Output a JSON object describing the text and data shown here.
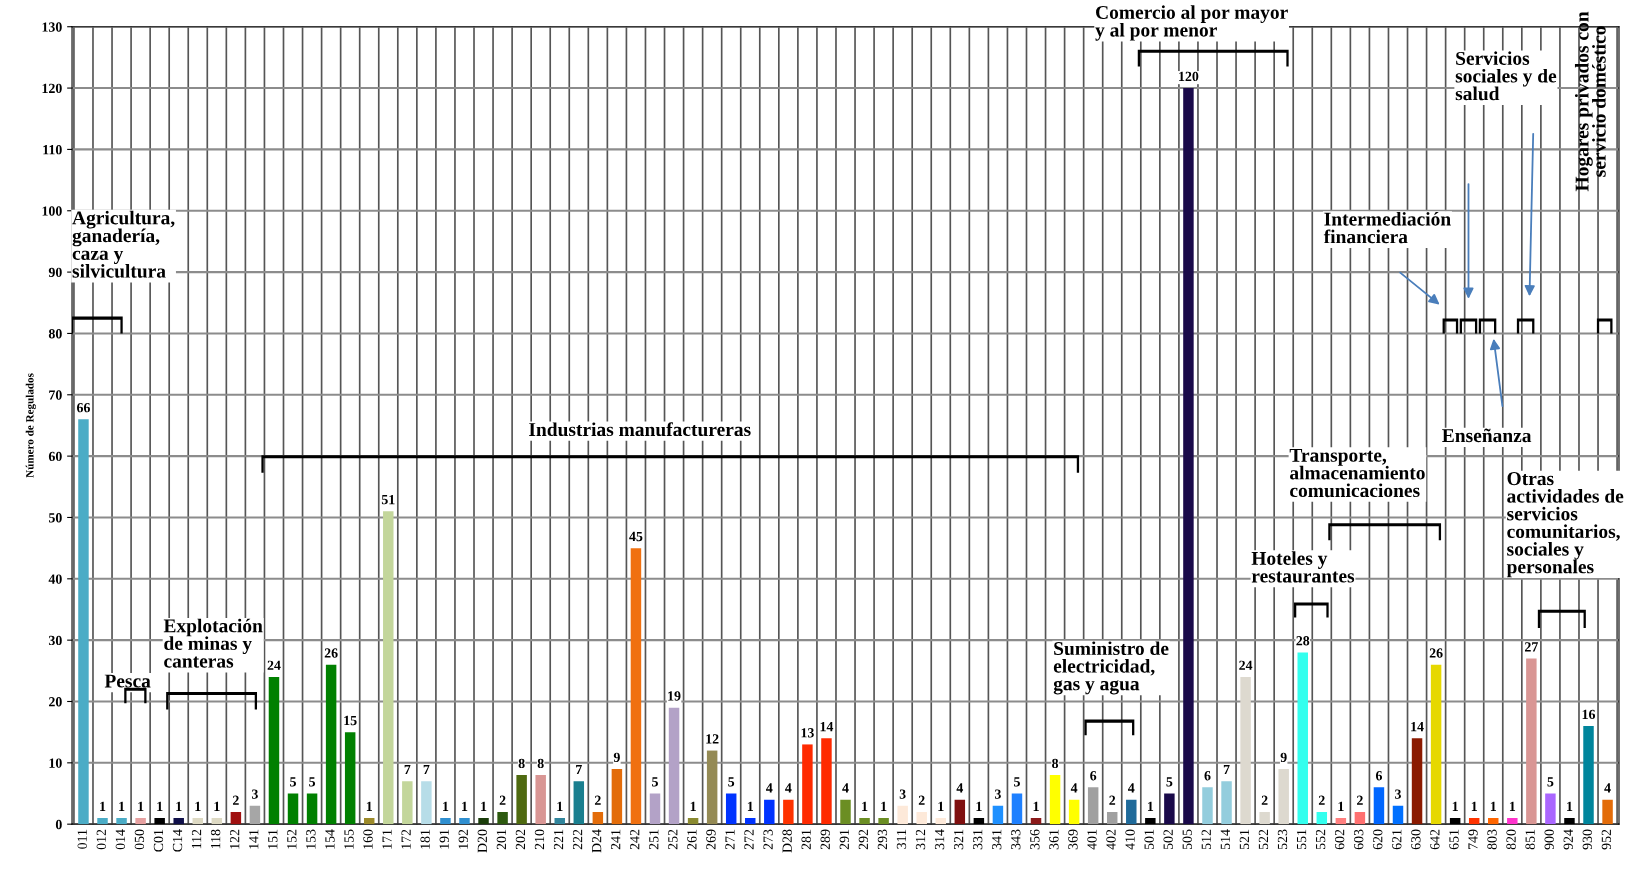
{
  "chart_data": {
    "type": "bar",
    "ylabel": "Número de Regulados",
    "categories": [
      "011",
      "012",
      "014",
      "050",
      "C01",
      "C14",
      "112",
      "118",
      "122",
      "141",
      "151",
      "152",
      "153",
      "154",
      "155",
      "160",
      "171",
      "172",
      "181",
      "191",
      "192",
      "D20",
      "201",
      "202",
      "210",
      "221",
      "222",
      "D24",
      "241",
      "242",
      "251",
      "252",
      "261",
      "269",
      "271",
      "272",
      "273",
      "D28",
      "281",
      "289",
      "291",
      "292",
      "293",
      "311",
      "312",
      "314",
      "321",
      "331",
      "341",
      "343",
      "356",
      "361",
      "369",
      "401",
      "402",
      "410",
      "501",
      "502",
      "505",
      "512",
      "514",
      "521",
      "522",
      "523",
      "551",
      "552",
      "602",
      "603",
      "620",
      "621",
      "630",
      "642",
      "651",
      "749",
      "803",
      "820",
      "851",
      "900",
      "924",
      "930",
      "952"
    ],
    "values": [
      66,
      1,
      1,
      1,
      1,
      1,
      1,
      1,
      2,
      3,
      24,
      5,
      5,
      26,
      15,
      1,
      51,
      7,
      7,
      1,
      1,
      1,
      2,
      8,
      8,
      1,
      7,
      2,
      9,
      45,
      5,
      19,
      1,
      12,
      5,
      1,
      4,
      4,
      13,
      14,
      4,
      1,
      1,
      3,
      2,
      1,
      4,
      1,
      3,
      5,
      1,
      8,
      4,
      6,
      2,
      4,
      1,
      5,
      120,
      6,
      7,
      24,
      2,
      9,
      28,
      2,
      1,
      2,
      6,
      3,
      14,
      26,
      1,
      1,
      1,
      1,
      27,
      5,
      1,
      16,
      4
    ],
    "colors": [
      "#4bacc6",
      "#4bacc6",
      "#4bacc6",
      "#e6a0a0",
      "#000000",
      "#10104a",
      "#ddd9c3",
      "#ddd9c3",
      "#a01010",
      "#a6a6a6",
      "#008000",
      "#008000",
      "#008000",
      "#008000",
      "#008000",
      "#9c8a2a",
      "#c3d69b",
      "#c3d69b",
      "#b7dde8",
      "#2f8fd0",
      "#2f8fd0",
      "#1a3d0a",
      "#2d5a0f",
      "#4f6a10",
      "#d99694",
      "#31859c",
      "#1a7f8f",
      "#e36c09",
      "#e36c09",
      "#f07010",
      "#b3a2c7",
      "#b3a2c7",
      "#8a8a30",
      "#948a54",
      "#0033ff",
      "#0033ff",
      "#0033ff",
      "#ff3300",
      "#ff2a00",
      "#ff2a00",
      "#6b8e23",
      "#6b8e23",
      "#6b8e23",
      "#fde9d9",
      "#fde9d9",
      "#fde9d9",
      "#7f1010",
      "#000000",
      "#1e90ff",
      "#1e80ff",
      "#8b1a1a",
      "#ffff00",
      "#ffff00",
      "#a0a0a0",
      "#a0a0a0",
      "#1f6a9a",
      "#000000",
      "#1a0a4a",
      "#1a0a4a",
      "#93cddd",
      "#93cddd",
      "#ddd9cf",
      "#ddd9cf",
      "#ddd9cf",
      "#33ffee",
      "#33ffee",
      "#ff7f7f",
      "#ff7070",
      "#0066ff",
      "#0070ff",
      "#8b1a00",
      "#e6d800",
      "#000000",
      "#ff3300",
      "#ff6600",
      "#ff33cc",
      "#d99694",
      "#aa66ff",
      "#000000",
      "#00859c",
      "#e36c09"
    ],
    "ylim": [
      0,
      130
    ],
    "yticks": [
      0,
      10,
      20,
      30,
      40,
      50,
      60,
      70,
      80,
      90,
      100,
      110,
      120,
      130
    ],
    "grid": true,
    "data_labels": true,
    "annotations": [
      "Agricultura,\nganadería,\ncaza y\nsilvicultura",
      "Pesca",
      "Explotación\nde minas y\ncanteras",
      "Industrias manufactureras",
      "Suministro de\nelectricidad,\ngas y agua",
      "Comercio al por mayor\ny al por menor",
      "Hoteles y\nrestaurantes",
      "Transporte,\nalmacenamiento\ncomunicaciones",
      "Intermediación\nfinanciera",
      "Enseñanza",
      "Servicios\nsociales y de\nsalud",
      "Otras\nactividades de\nservicios\ncomunitarios,\nsociales y\npersonales",
      "Hogares privados con\nservicio doméstico"
    ]
  }
}
